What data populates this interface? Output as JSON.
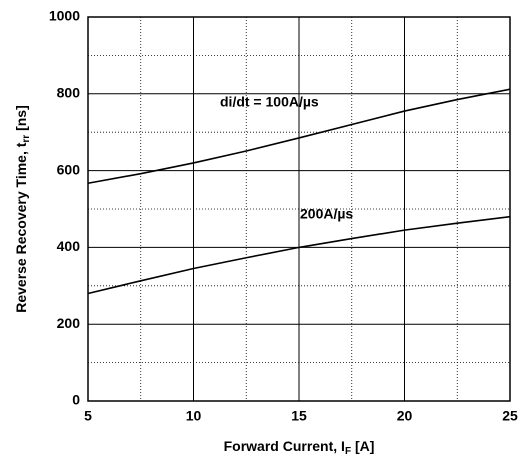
{
  "chart_data": {
    "type": "line",
    "xlabel": {
      "text": "Forward Current, I",
      "sub": "F",
      "unit": " [A]"
    },
    "ylabel": {
      "text": "Reverse Recovery Time, t",
      "sub": "rr",
      "unit": " [ns]"
    },
    "x": [
      5,
      7.5,
      10,
      12.5,
      15,
      17.5,
      20,
      22.5,
      25
    ],
    "series": [
      {
        "name": "di/dt = 100A/µs",
        "color": "#000000",
        "values": [
          567,
          592,
          620,
          651,
          685,
          720,
          755,
          785,
          812
        ]
      },
      {
        "name": "200A/µs",
        "color": "#000000",
        "values": [
          280,
          313,
          345,
          373,
          400,
          423,
          445,
          463,
          480
        ]
      }
    ],
    "xlim": [
      5,
      25
    ],
    "ylim": [
      0,
      1000
    ],
    "xticks": [
      5,
      10,
      15,
      20,
      25
    ],
    "yticks": [
      0,
      200,
      400,
      600,
      800,
      1000
    ],
    "xminor": [
      7.5,
      12.5,
      17.5,
      22.5
    ],
    "yminor": [
      100,
      300,
      500,
      700,
      900
    ],
    "grid": true
  }
}
